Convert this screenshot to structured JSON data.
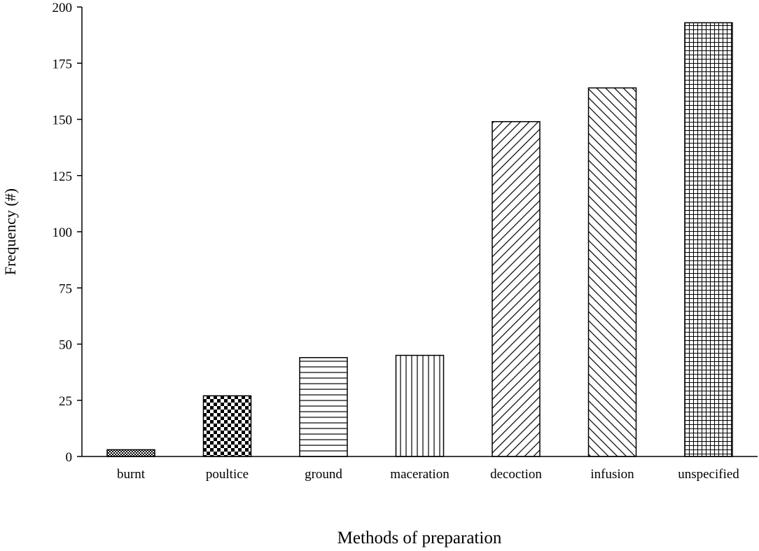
{
  "chart_data": {
    "type": "bar",
    "xlabel": "Methods of preparation",
    "ylabel": "Frequency (#)",
    "ylim": [
      0,
      200
    ],
    "yticks": [
      0,
      25,
      50,
      75,
      100,
      125,
      150,
      175,
      200
    ],
    "grid": false,
    "categories": [
      "burnt",
      "poultice",
      "ground",
      "maceration",
      "decoction",
      "infusion",
      "unspecified"
    ],
    "values": [
      3,
      27,
      44,
      45,
      149,
      164,
      193
    ],
    "patterns": [
      "fine-dots",
      "checkerboard",
      "horizontal-lines",
      "vertical-lines",
      "diagonal-lines-up",
      "diagonal-lines-down",
      "grid"
    ],
    "bar_color": "#000000",
    "background_color": "#ffffff"
  }
}
